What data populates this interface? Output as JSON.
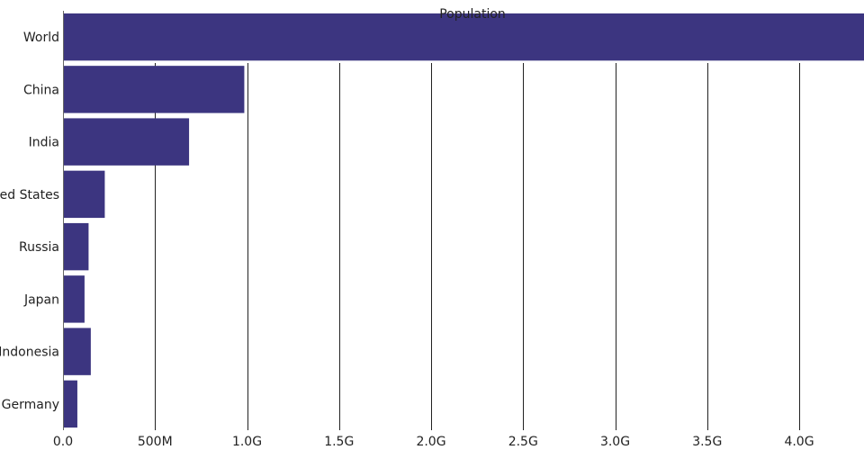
{
  "chart_data": {
    "type": "bar",
    "orientation": "horizontal",
    "title": "Population",
    "categories": [
      "World",
      "China",
      "India",
      "United States",
      "Russia",
      "Japan",
      "Indonesia",
      "Germany"
    ],
    "values": [
      4380000000,
      985000000,
      685000000,
      227000000,
      139000000,
      117000000,
      151000000,
      78000000
    ],
    "xlim": [
      0,
      4350000000
    ],
    "xticks": [
      {
        "value": 0,
        "label": "0.0"
      },
      {
        "value": 500000000,
        "label": "500M"
      },
      {
        "value": 1000000000,
        "label": "1.0G"
      },
      {
        "value": 1500000000,
        "label": "1.5G"
      },
      {
        "value": 2000000000,
        "label": "2.0G"
      },
      {
        "value": 2500000000,
        "label": "2.5G"
      },
      {
        "value": 3000000000,
        "label": "3.0G"
      },
      {
        "value": 3500000000,
        "label": "3.5G"
      },
      {
        "value": 4000000000,
        "label": "4.0G"
      }
    ],
    "xlabel": "",
    "ylabel": "",
    "grid": true,
    "colors": {
      "bar": "#3c3580",
      "grid": "#222222",
      "text": "#222222"
    }
  }
}
